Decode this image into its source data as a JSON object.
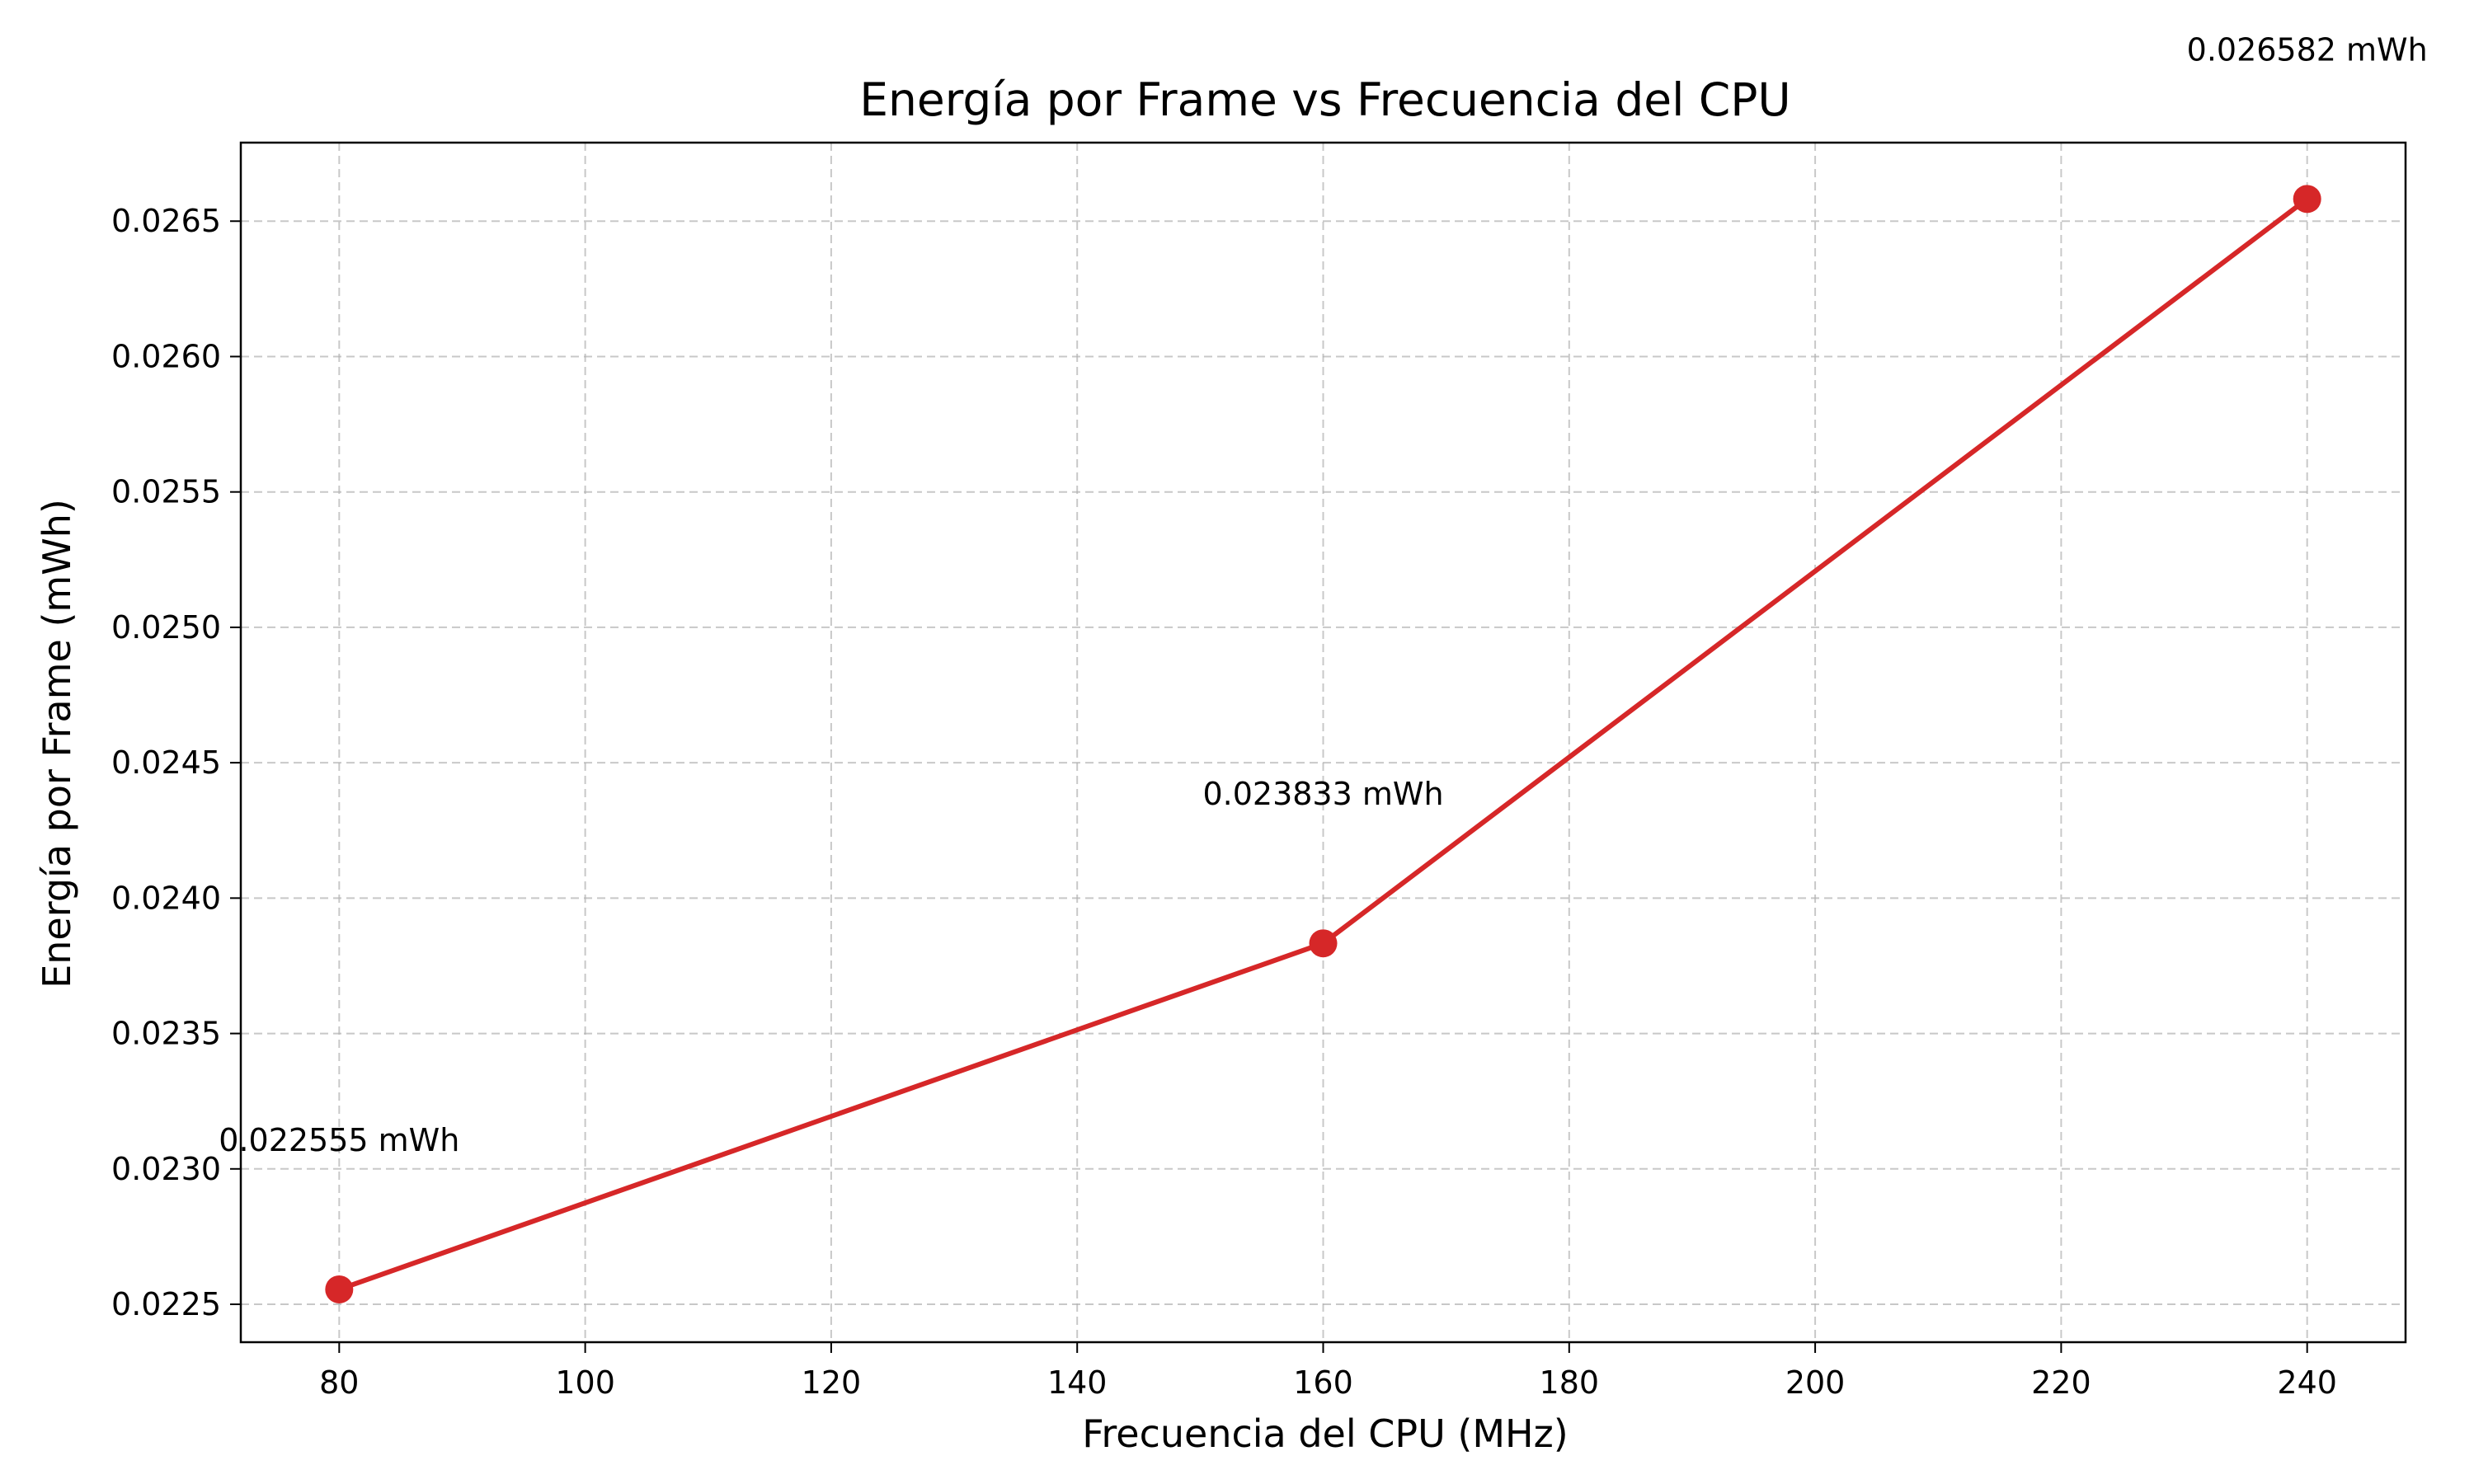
{
  "chart_data": {
    "type": "line",
    "title": "Energía por Frame vs Frecuencia del CPU",
    "xlabel": "Frecuencia del CPU (MHz)",
    "ylabel": "Energía por Frame (mWh)",
    "x": [
      80,
      160,
      240
    ],
    "series": [
      {
        "name": "",
        "values": [
          0.022555,
          0.023833,
          0.026582
        ],
        "color": "#d62728",
        "marker": "circle"
      }
    ],
    "data_labels": [
      "0.022555 mWh",
      "0.023833 mWh",
      "0.026582 mWh"
    ],
    "xlim": [
      72,
      248
    ],
    "ylim": [
      0.02236,
      0.02679
    ],
    "x_ticks": [
      80,
      100,
      120,
      140,
      160,
      180,
      200,
      220,
      240
    ],
    "x_tick_labels": [
      "80",
      "100",
      "120",
      "140",
      "160",
      "180",
      "200",
      "220",
      "240"
    ],
    "y_ticks": [
      0.0225,
      0.023,
      0.0235,
      0.024,
      0.0245,
      0.025,
      0.0255,
      0.026,
      0.0265
    ],
    "y_tick_labels": [
      "0.0225",
      "0.0230",
      "0.0235",
      "0.0240",
      "0.0245",
      "0.0250",
      "0.0255",
      "0.0260",
      "0.0265"
    ],
    "grid": true,
    "grid_style": "dashed"
  }
}
